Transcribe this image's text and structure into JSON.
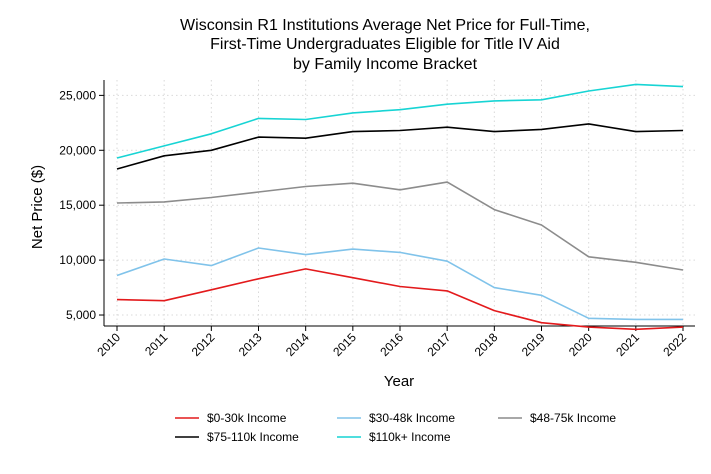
{
  "chart_data": {
    "type": "line",
    "title_lines": [
      "Wisconsin R1 Institutions Average Net Price for Full-Time,",
      "First-Time Undergraduates Eligible for Title IV Aid",
      "by Family Income Bracket"
    ],
    "xlabel": "Year",
    "ylabel": "Net Price ($)",
    "x": [
      2010,
      2011,
      2012,
      2013,
      2014,
      2015,
      2016,
      2017,
      2018,
      2019,
      2020,
      2021,
      2022
    ],
    "x_tick_labels": [
      "2010",
      "2011",
      "2012",
      "2013",
      "2014",
      "2015",
      "2016",
      "2017",
      "2018",
      "2019",
      "2020",
      "2021",
      "2022"
    ],
    "y_ticks": [
      5000,
      10000,
      15000,
      20000,
      25000
    ],
    "y_tick_labels": [
      "5,000",
      "10,000",
      "15,000",
      "20,000",
      "25,000"
    ],
    "ylim": [
      4000,
      26400
    ],
    "grid": true,
    "legend_position": "bottom",
    "series": [
      {
        "name": "$0-30k Income",
        "color": "#e31a1c",
        "values": [
          6400,
          6300,
          7300,
          8300,
          9200,
          8400,
          7600,
          7200,
          5400,
          4300,
          3900,
          3700,
          3900
        ]
      },
      {
        "name": "$30-48k Income",
        "color": "#80c3ea",
        "values": [
          8600,
          10100,
          9500,
          11100,
          10500,
          11000,
          10700,
          9900,
          7500,
          6800,
          4700,
          4600,
          4600
        ]
      },
      {
        "name": "$48-75k Income",
        "color": "#8c8c8c",
        "values": [
          15200,
          15300,
          15700,
          16200,
          16700,
          17000,
          16400,
          17100,
          14600,
          13200,
          10300,
          9800,
          9100
        ]
      },
      {
        "name": "$75-110k Income",
        "color": "#000000",
        "values": [
          18300,
          19500,
          20000,
          21200,
          21100,
          21700,
          21800,
          22100,
          21700,
          21900,
          22400,
          21700,
          21800
        ]
      },
      {
        "name": "$110k+ Income",
        "color": "#17d4d4",
        "values": [
          19300,
          20400,
          21500,
          22900,
          22800,
          23400,
          23700,
          24200,
          24500,
          24600,
          25400,
          26000,
          25800
        ]
      }
    ]
  }
}
